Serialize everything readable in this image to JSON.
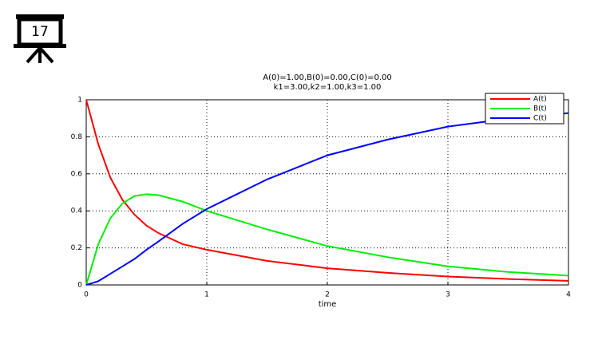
{
  "slide_number": "17",
  "chart_data": {
    "type": "line",
    "title": "A(0)=1.00,B(0)=0.00,C(0)=0.00",
    "subtitle": "k1=3.00,k2=1.00,k3=1.00",
    "x_label": "time",
    "x": [
      0,
      0.1,
      0.2,
      0.3,
      0.4,
      0.5,
      0.6,
      0.8,
      1,
      1.25,
      1.5,
      2,
      2.5,
      3,
      3.5,
      4
    ],
    "series": [
      {
        "name": "A(t)",
        "color": "#ff0000",
        "values": [
          1,
          0.76,
          0.58,
          0.46,
          0.38,
          0.32,
          0.28,
          0.22,
          0.19,
          0.16,
          0.13,
          0.09,
          0.065,
          0.045,
          0.032,
          0.022
        ]
      },
      {
        "name": "B(t)",
        "color": "#00ee00",
        "values": [
          0,
          0.22,
          0.36,
          0.44,
          0.48,
          0.49,
          0.485,
          0.45,
          0.4,
          0.35,
          0.3,
          0.21,
          0.15,
          0.1,
          0.07,
          0.05
        ]
      },
      {
        "name": "C(t)",
        "color": "#0000ff",
        "values": [
          0,
          0.02,
          0.06,
          0.1,
          0.14,
          0.19,
          0.235,
          0.33,
          0.41,
          0.49,
          0.57,
          0.7,
          0.785,
          0.855,
          0.898,
          0.928
        ]
      }
    ],
    "xlim": [
      0,
      4
    ],
    "xticks": [
      0,
      1,
      2,
      3,
      4
    ],
    "ylim": [
      0,
      1
    ],
    "yticks": [
      0,
      0.2,
      0.4,
      0.6,
      0.8,
      1
    ],
    "grid": true,
    "legend": "upper-right"
  }
}
